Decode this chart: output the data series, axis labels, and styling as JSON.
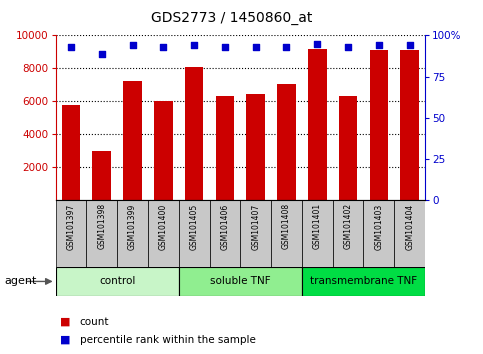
{
  "title": "GDS2773 / 1450860_at",
  "samples": [
    "GSM101397",
    "GSM101398",
    "GSM101399",
    "GSM101400",
    "GSM101405",
    "GSM101406",
    "GSM101407",
    "GSM101408",
    "GSM101401",
    "GSM101402",
    "GSM101403",
    "GSM101404"
  ],
  "counts": [
    5750,
    2950,
    7200,
    6000,
    8050,
    6300,
    6450,
    7050,
    9150,
    6300,
    9100,
    9100
  ],
  "percentiles": [
    93,
    89,
    94,
    93,
    94,
    93,
    93,
    93,
    95,
    93,
    94,
    94
  ],
  "groups": [
    {
      "label": "control",
      "start": 0,
      "end": 4,
      "color": "#c8f5c8"
    },
    {
      "label": "soluble TNF",
      "start": 4,
      "end": 8,
      "color": "#90ee90"
    },
    {
      "label": "transmembrane TNF",
      "start": 8,
      "end": 12,
      "color": "#00dd44"
    }
  ],
  "ylim_left": [
    0,
    10000
  ],
  "ylim_right": [
    0,
    100
  ],
  "yticks_left": [
    2000,
    4000,
    6000,
    8000,
    10000
  ],
  "yticks_right": [
    0,
    25,
    50,
    75,
    100
  ],
  "bar_color": "#cc0000",
  "dot_color": "#0000cc",
  "bar_width": 0.6,
  "legend_count_label": "count",
  "legend_pct_label": "percentile rank within the sample",
  "agent_label": "agent",
  "background_color": "#ffffff",
  "tick_label_color_left": "#cc0000",
  "tick_label_color_right": "#0000cc",
  "title_color": "#000000",
  "label_bg_color": "#c8c8c8",
  "figsize": [
    4.83,
    3.54
  ],
  "dpi": 100
}
